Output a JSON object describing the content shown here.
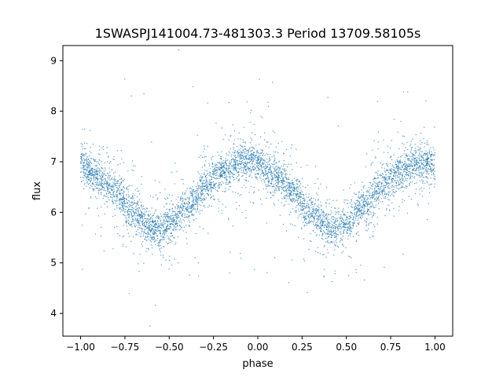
{
  "chart_data": {
    "type": "scatter",
    "title": "1SWASPJ141004.73-481303.3 Period 13709.58105s",
    "xlabel": "phase",
    "ylabel": "flux",
    "xlim": [
      -1.1,
      1.1
    ],
    "ylim": [
      3.55,
      9.3
    ],
    "xticks": [
      -1.0,
      -0.75,
      -0.5,
      -0.25,
      0.0,
      0.25,
      0.5,
      0.75,
      1.0
    ],
    "xtick_labels": [
      "−1.00",
      "−0.75",
      "−0.50",
      "−0.25",
      "0.00",
      "0.25",
      "0.50",
      "0.75",
      "1.00"
    ],
    "yticks": [
      4,
      5,
      6,
      7,
      8,
      9
    ],
    "ytick_labels": [
      "4",
      "5",
      "6",
      "7",
      "8",
      "9"
    ],
    "grid": false,
    "marker_color": "#1f77b4",
    "series": [
      {
        "description_curve": "folded light curve, plotted twice over phase -1 to 1",
        "x": [
          -1.0,
          -0.9,
          -0.8,
          -0.7,
          -0.6,
          -0.55,
          -0.5,
          -0.4,
          -0.3,
          -0.2,
          -0.1,
          -0.05,
          0.0,
          0.1,
          0.2,
          0.3,
          0.4,
          0.45,
          0.5,
          0.6,
          0.7,
          0.8,
          0.9,
          1.0
        ],
        "y": [
          6.95,
          6.7,
          6.4,
          6.0,
          5.7,
          5.65,
          5.75,
          6.1,
          6.5,
          6.8,
          7.0,
          7.02,
          6.95,
          6.7,
          6.4,
          6.0,
          5.7,
          5.65,
          5.75,
          6.1,
          6.5,
          6.8,
          7.0,
          6.95
        ]
      }
    ]
  }
}
